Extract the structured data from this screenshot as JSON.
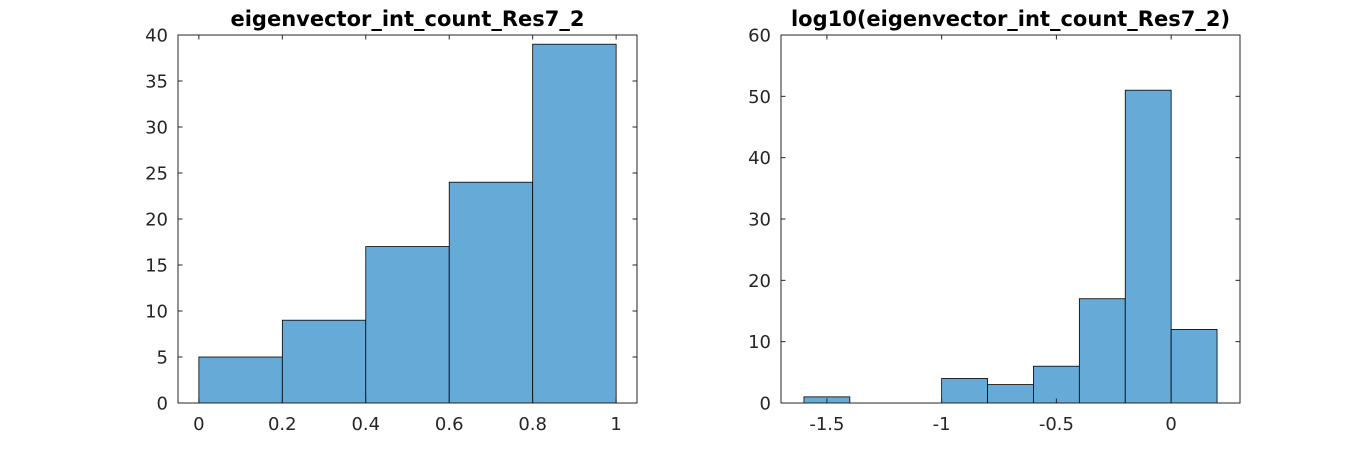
{
  "colors": {
    "bar_fill": "#66aad8",
    "bar_edge": "#000000",
    "axis": "#262626",
    "background": "#ffffff"
  },
  "chart_data": [
    {
      "type": "bar",
      "title": "eigenvector_int_count_Res7_2",
      "xlabel": "",
      "ylabel": "",
      "bin_edges": [
        0,
        0.2,
        0.4,
        0.6,
        0.8,
        1.0
      ],
      "values": [
        5,
        9,
        17,
        24,
        39
      ],
      "xlim": [
        -0.05,
        1.05
      ],
      "ylim": [
        0,
        40
      ],
      "xticks": [
        0,
        0.2,
        0.4,
        0.6,
        0.8,
        1
      ],
      "xtick_labels": [
        "0",
        "0.2",
        "0.4",
        "0.6",
        "0.8",
        "1"
      ],
      "yticks": [
        0,
        5,
        10,
        15,
        20,
        25,
        30,
        35,
        40
      ],
      "ytick_labels": [
        "0",
        "5",
        "10",
        "15",
        "20",
        "25",
        "30",
        "35",
        "40"
      ],
      "grid": false,
      "box": true
    },
    {
      "type": "bar",
      "title": "log10(eigenvector_int_count_Res7_2)",
      "xlabel": "",
      "ylabel": "",
      "bin_edges": [
        -1.6,
        -1.4,
        -1.2,
        -1.0,
        -0.8,
        -0.6,
        -0.4,
        -0.2,
        0.0,
        0.2
      ],
      "values": [
        1,
        0,
        0,
        4,
        3,
        6,
        17,
        51,
        12
      ],
      "xlim": [
        -1.7,
        0.3
      ],
      "ylim": [
        0,
        60
      ],
      "xticks": [
        -1.5,
        -1,
        -0.5,
        0
      ],
      "xtick_labels": [
        "-1.5",
        "-1",
        "-0.5",
        "0"
      ],
      "yticks": [
        0,
        10,
        20,
        30,
        40,
        50,
        60
      ],
      "ytick_labels": [
        "0",
        "10",
        "20",
        "30",
        "40",
        "50",
        "60"
      ],
      "grid": false,
      "box": true
    }
  ]
}
